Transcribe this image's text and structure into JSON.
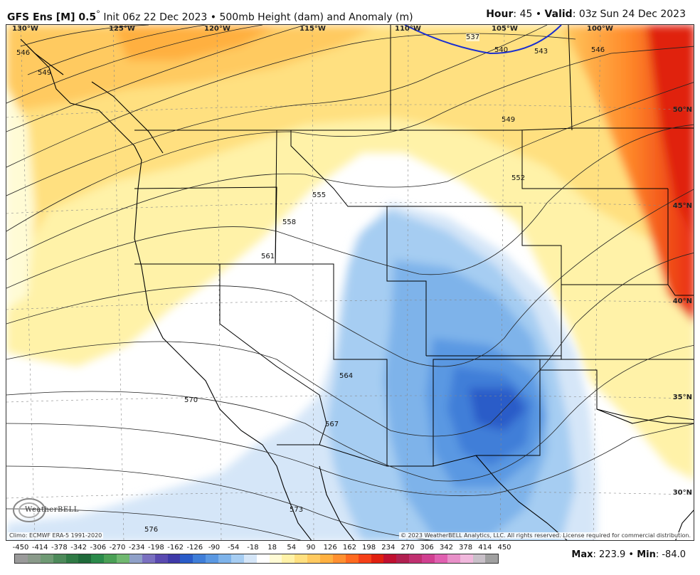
{
  "header": {
    "model": "GFS Ens [M] 0.5",
    "degree": "°",
    "init": " Init 06z 22 Dec 2023 • 500mb Height (dam) and Anomaly (m)",
    "hour_label": "Hour",
    "hour_value": ": 45 • ",
    "valid_label": "Valid",
    "valid_value": ": 03z Sun 24 Dec 2023"
  },
  "longitudes": [
    "130°W",
    "125°W",
    "120°W",
    "115°W",
    "110°W",
    "105°W",
    "100°W"
  ],
  "latitudes": [
    "50°N",
    "45°N",
    "40°N",
    "35°N",
    "30°N"
  ],
  "contours": [
    "537",
    "540",
    "543",
    "546",
    "549",
    "552",
    "555",
    "558",
    "561",
    "564",
    "567",
    "570",
    "573",
    "576",
    "546",
    "549"
  ],
  "logo": "WeatherBELL",
  "climo": "Climo: ECMWF ERA-5 1991-2020",
  "copyright": "© 2023 WeatherBELL Analytics, LLC. All rights reserved. License required for commercial distribution.",
  "colorbar": {
    "ticks": [
      "-450",
      "-414",
      "-378",
      "-342",
      "-306",
      "-270",
      "-234",
      "-198",
      "-162",
      "-126",
      "-90",
      "-54",
      "-18",
      "18",
      "54",
      "90",
      "126",
      "162",
      "198",
      "234",
      "270",
      "306",
      "342",
      "378",
      "414",
      "450"
    ],
    "colors": [
      "#9a9a9a",
      "#8a9a8a",
      "#6f9a74",
      "#4d8a5a",
      "#2f7a45",
      "#1f6a3a",
      "#2a8a4a",
      "#4aa055",
      "#70b870",
      "#8fa0c8",
      "#7a70c0",
      "#5a4ab0",
      "#3f3aa8",
      "#2a5cc8",
      "#3f7ed8",
      "#5a98e2",
      "#7eb3ea",
      "#a6cdf2",
      "#d5e6f8",
      "#ffffff",
      "#fffbd5",
      "#fff2a8",
      "#ffe080",
      "#ffca60",
      "#ffb040",
      "#ff9030",
      "#ff6a20",
      "#f54018",
      "#e02010",
      "#c01030",
      "#b02050",
      "#c03070",
      "#d04090",
      "#e060b0",
      "#e890c8",
      "#f0b8dc",
      "#c8c0c8",
      "#a0a0a0"
    ]
  },
  "stats": {
    "max_label": "Max",
    "max_value": ": 223.9 • ",
    "min_label": "Min",
    "min_value": ": -84.0"
  }
}
